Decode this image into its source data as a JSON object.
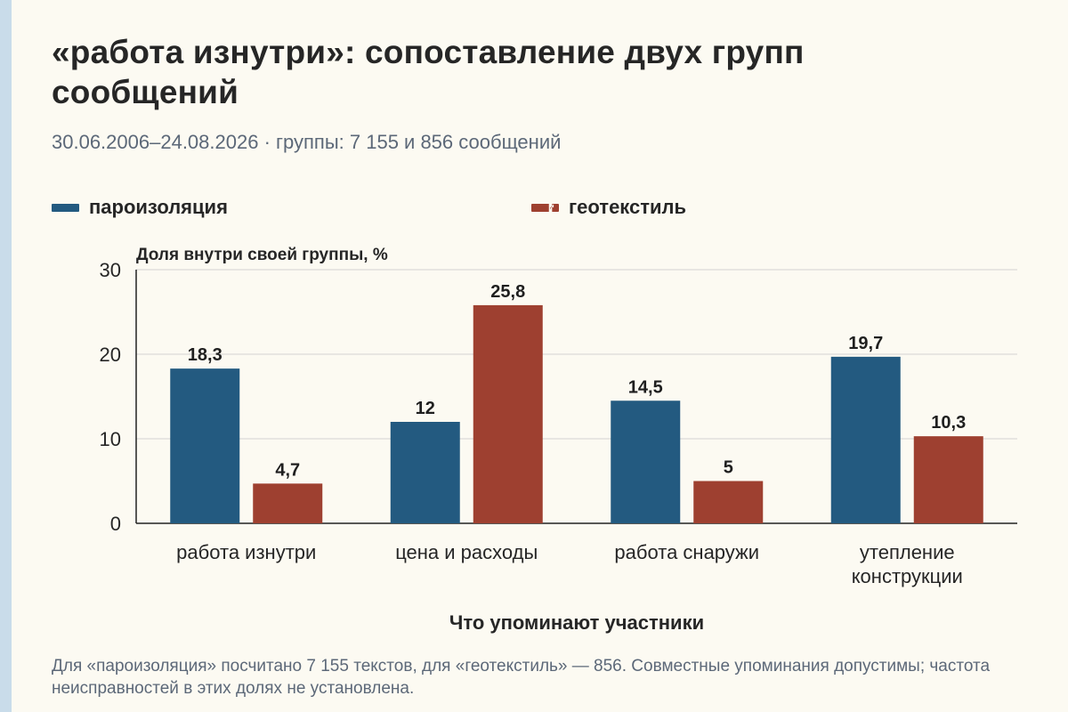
{
  "title": "«работа изнутри»: сопоставление двух групп сообщений",
  "subtitle": "30.06.2006–24.08.2026 · группы: 7 155 и 856 сообщений",
  "footer": "Для «пароизоляция» посчитано 7 155 текстов, для «геотекстиль» — 856. Совместные упоминания допустимы; частота неисправностей в этих долях не установлена.",
  "colors": {
    "series1": "#235a80",
    "series2": "#9e4030",
    "grid": "#d3d3d3",
    "axis": "#222222"
  },
  "chart_data": {
    "type": "bar",
    "title": "«работа изнутри»: сопоставление двух групп сообщений",
    "subtitle": "30.06.2006–24.08.2026 · группы: 7 155 и 856 сообщений",
    "xlabel": "Что упоминают участники",
    "ylabel": "Доля внутри своей группы, %",
    "categories": [
      "работа изнутри",
      "цена и расходы",
      "работа снаружи",
      "утепление конструкции"
    ],
    "series": [
      {
        "name": "пароизоляция",
        "values": [
          18.3,
          12,
          14.5,
          19.7
        ],
        "labels": [
          "18,3",
          "12",
          "14,5",
          "19,7"
        ],
        "color": "#235a80"
      },
      {
        "name": "геотекстиль",
        "values": [
          4.7,
          25.8,
          5,
          10.3
        ],
        "labels": [
          "4,7",
          "25,8",
          "5",
          "10,3"
        ],
        "color": "#9e4030"
      }
    ],
    "ylim": [
      0,
      30
    ],
    "yticks": [
      0,
      10,
      20,
      30
    ],
    "grid": true,
    "legend": "top"
  }
}
